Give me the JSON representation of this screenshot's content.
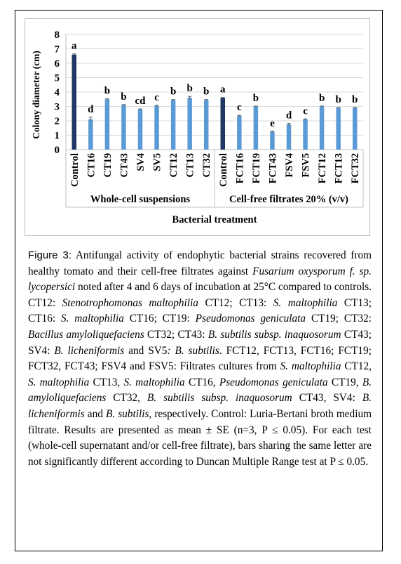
{
  "figure": {
    "label": "Figure 3:",
    "caption_runs": [
      {
        "t": " Antifungal activity of endophytic bacterial strains recovered from healthy tomato and their cell-free filtrates against "
      },
      {
        "t": "Fusarium oxysporum f. sp. lycopersici",
        "i": true
      },
      {
        "t": " noted after 4 and 6 days of incubation at 25°C compared to controls. CT12: "
      },
      {
        "t": "Stenotrophomonas maltophilia",
        "i": true
      },
      {
        "t": " CT12; CT13: "
      },
      {
        "t": "S. maltophilia",
        "i": true
      },
      {
        "t": " CT13; CT16: "
      },
      {
        "t": "S. maltophilia",
        "i": true
      },
      {
        "t": " CT16; CT19: "
      },
      {
        "t": "Pseudomonas geniculata",
        "i": true
      },
      {
        "t": " CT19; CT32: "
      },
      {
        "t": "Bacillus amyloliquefaciens",
        "i": true
      },
      {
        "t": " CT32; CT43: "
      },
      {
        "t": "B. subtilis subsp. inaquosorum",
        "i": true
      },
      {
        "t": " CT43; SV4: "
      },
      {
        "t": "B. licheniformis",
        "i": true
      },
      {
        "t": " and SV5"
      },
      {
        "t": ": B. subtilis",
        "i": true
      },
      {
        "t": ". FCT12, FCT13, FCT16; FCT19; FCT32, FCT43; FSV4 and FSV5: Filtrates cultures from "
      },
      {
        "t": "S. maltophilia",
        "i": true
      },
      {
        "t": " CT12, "
      },
      {
        "t": "S. maltophilia",
        "i": true
      },
      {
        "t": " CT13, "
      },
      {
        "t": "S. maltophilia",
        "i": true
      },
      {
        "t": " CT16, "
      },
      {
        "t": "Pseudomonas geniculata",
        "i": true
      },
      {
        "t": " CT19, "
      },
      {
        "t": "B. amyloliquefaciens",
        "i": true
      },
      {
        "t": " CT32, "
      },
      {
        "t": "B. subtilis subsp. inaquosorum",
        "i": true
      },
      {
        "t": " CT43, SV4: "
      },
      {
        "t": "B. licheniformis",
        "i": true
      },
      {
        "t": " and "
      },
      {
        "t": "B. subtilis",
        "i": true
      },
      {
        "t": ", respectively. Control: Luria-Bertani broth medium filtrate. Results are presented as mean ± SE (n=3, P ≤ 0.05). For each test (whole-cell supernatant and/or cell-free filtrate), bars sharing the same letter are not significantly different according to Duncan Multiple Range test at P ≤ 0.05."
      }
    ]
  },
  "chart_data": {
    "type": "bar",
    "title": "",
    "ylabel": "Colony diameter (cm)",
    "xlabel": "Bacterial treatment",
    "ylim": [
      0,
      8
    ],
    "yticks": [
      0,
      1,
      2,
      3,
      4,
      5,
      6,
      7,
      8
    ],
    "grid": true,
    "groups": [
      {
        "name": "Whole-cell suspensions",
        "start": 0,
        "end": 9
      },
      {
        "name": "Cell-free filtrates 20% (v/v)",
        "start": 9,
        "end": 18
      }
    ],
    "categories": [
      "Control",
      "CT16",
      "CT19",
      "CT43",
      "SV4",
      "SV5",
      "CT12",
      "CT13",
      "CT32",
      "Control",
      "FCT16",
      "FCT19",
      "FCT43",
      "FSV4",
      "FSV5",
      "FCT12",
      "FCT13",
      "FCT32"
    ],
    "values": [
      6.6,
      2.1,
      3.5,
      3.1,
      2.8,
      3.05,
      3.45,
      3.6,
      3.45,
      3.6,
      2.35,
      3.0,
      1.25,
      1.75,
      2.1,
      3.0,
      2.9,
      2.9
    ],
    "errors": [
      0.05,
      0.15,
      0.03,
      0.03,
      0.03,
      0.03,
      0.03,
      0.1,
      0.03,
      0.03,
      0.03,
      0.03,
      0.03,
      0.08,
      0.03,
      0.03,
      0.03,
      0.03
    ],
    "letters": [
      "a",
      "d",
      "b",
      "b",
      "cd",
      "c",
      "b",
      "b",
      "b",
      "a",
      "c",
      "b",
      "e",
      "d",
      "c",
      "b",
      "b",
      "b"
    ],
    "colors": {
      "control": "#1f3864",
      "treatment": "#5b9bd5",
      "grid": "#d9d9d9",
      "error": "#595959"
    }
  }
}
